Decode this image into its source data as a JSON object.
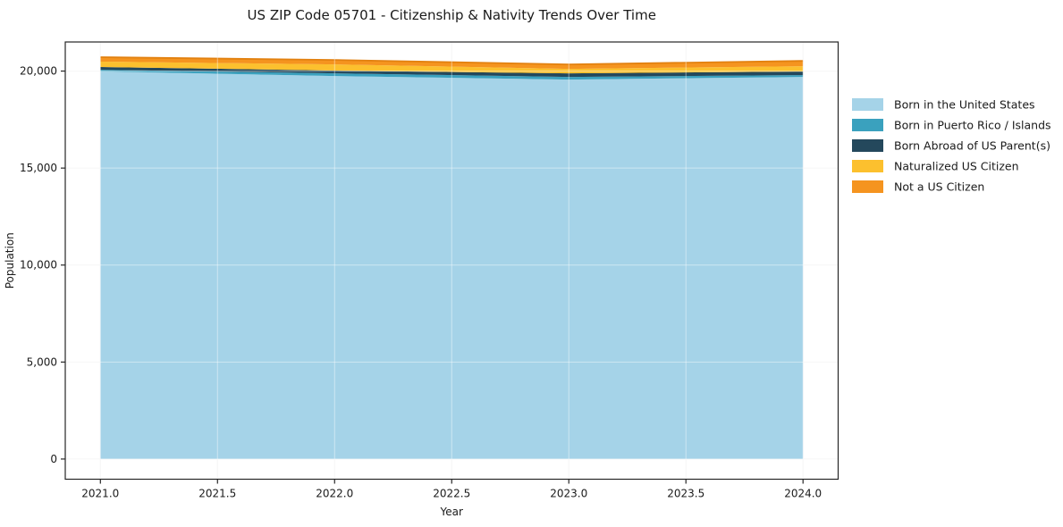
{
  "title": "US ZIP Code 05701 - Citizenship & Nativity Trends Over Time",
  "chart_data": {
    "type": "area",
    "stacked": true,
    "title": "US ZIP Code 05701 - Citizenship & Nativity Trends Over Time",
    "xlabel": "Year",
    "ylabel": "Population",
    "x": [
      2021,
      2022,
      2023,
      2024
    ],
    "series": [
      {
        "name": "Born in the United States",
        "color": "#a5d3e8",
        "values": [
          19980,
          19745,
          19560,
          19700
        ]
      },
      {
        "name": "Born in Puerto Rico / Islands",
        "color": "#3aa1be",
        "values": [
          90,
          140,
          140,
          90
        ]
      },
      {
        "name": "Born Abroad of US Parent(s)",
        "color": "#24485c",
        "values": [
          140,
          140,
          185,
          185
        ]
      },
      {
        "name": "Naturalized US Citizen",
        "color": "#fcc02e",
        "values": [
          275,
          320,
          230,
          275
        ]
      },
      {
        "name": "Not a US Citizen",
        "color": "#f5941f",
        "values": [
          230,
          230,
          230,
          275
        ]
      }
    ],
    "totals": [
      20715,
      20575,
      20345,
      20525
    ],
    "xlim": [
      2020.85,
      2024.15
    ],
    "ylim": [
      -1040,
      21500
    ],
    "xticks": [
      2021.0,
      2021.5,
      2022.0,
      2022.5,
      2023.0,
      2023.5,
      2024.0
    ],
    "xtick_labels": [
      "2021.0",
      "2021.5",
      "2022.0",
      "2022.5",
      "2023.0",
      "2023.5",
      "2024.0"
    ],
    "yticks": [
      0,
      5000,
      10000,
      15000,
      20000
    ],
    "ytick_labels": [
      "0",
      "5,000",
      "10,000",
      "15,000",
      "20,000"
    ],
    "grid": true,
    "legend_position": "right-outside",
    "colors": {
      "spine": "#262626",
      "grid_under": "#f0f0f0",
      "grid_over": "rgba(255,255,255,0.45)",
      "top_edge": "#e28110"
    }
  }
}
